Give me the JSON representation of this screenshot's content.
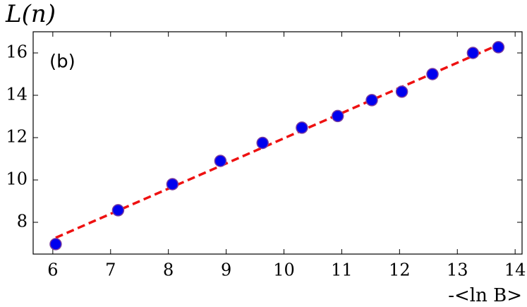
{
  "chart_data": {
    "type": "scatter",
    "panel_label": "(b)",
    "y_label": "L(n)",
    "x_label": "-<ln B>",
    "xlim": [
      5.66,
      14.12
    ],
    "ylim": [
      6.5,
      17
    ],
    "xticks": [
      6,
      7,
      8,
      9,
      10,
      11,
      12,
      13,
      14
    ],
    "yticks": [
      8,
      10,
      12,
      14,
      16
    ],
    "series": [
      {
        "color": "#0000ee",
        "edge_color": "#7a3ea0",
        "x": [
          6.05,
          7.13,
          8.07,
          8.9,
          9.63,
          10.31,
          10.93,
          11.52,
          12.04,
          12.57,
          13.27,
          13.71
        ],
        "values": [
          6.97,
          8.57,
          9.8,
          10.9,
          11.75,
          12.47,
          13.02,
          13.77,
          14.17,
          15.0,
          16.0,
          16.27
        ]
      },
      {
        "style": "dashed-line",
        "color": "#ee1111",
        "x": [
          6.05,
          13.75
        ],
        "values": [
          7.27,
          16.43
        ]
      }
    ]
  }
}
